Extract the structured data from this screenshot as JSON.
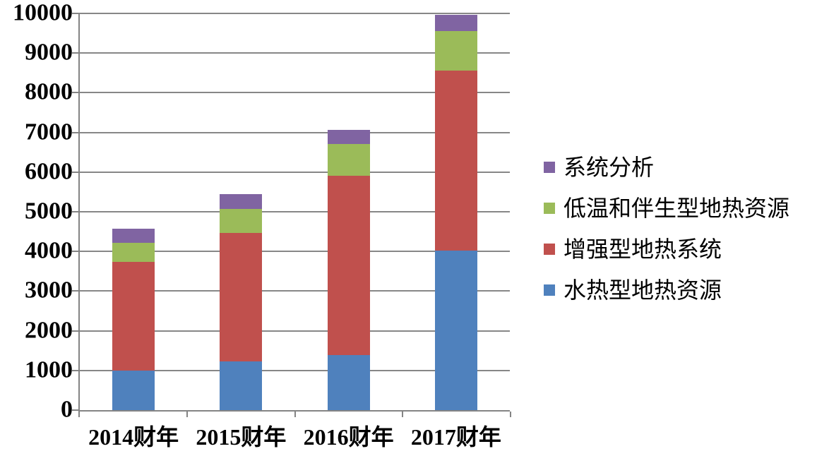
{
  "chart_data": {
    "type": "bar",
    "stacked": true,
    "title": "",
    "xlabel": "",
    "ylabel": "",
    "categories": [
      "2014财年",
      "2015财年",
      "2016财年",
      "2017财年"
    ],
    "series": [
      {
        "name": "水热型地热资源",
        "color": "#4F81BD",
        "values": [
          1000,
          1220,
          1385,
          4030
        ]
      },
      {
        "name": "增强型地热系统",
        "color": "#C0504D",
        "values": [
          2730,
          3255,
          4515,
          4525
        ]
      },
      {
        "name": "低温和伴生型地热资源",
        "color": "#9BBB59",
        "values": [
          490,
          595,
          810,
          1005
        ]
      },
      {
        "name": "系统分析",
        "color": "#8064A2",
        "values": [
          350,
          375,
          350,
          400
        ]
      }
    ],
    "totals": [
      4570,
      5445,
      7060,
      9960
    ],
    "ylim": [
      0,
      10000
    ],
    "ytick_step": 1000,
    "y_tick_labels": [
      "0",
      "1000",
      "2000",
      "3000",
      "4000",
      "5000",
      "6000",
      "7000",
      "8000",
      "9000",
      "10000"
    ],
    "grid": "horizontal",
    "legend": {
      "position": "right",
      "items": [
        "系统分析",
        "低温和伴生型地热资源",
        "增强型地热系统",
        "水热型地热资源"
      ]
    },
    "axis_color": "#848484",
    "gridline_color": "#878787",
    "text_color": "#000000"
  }
}
